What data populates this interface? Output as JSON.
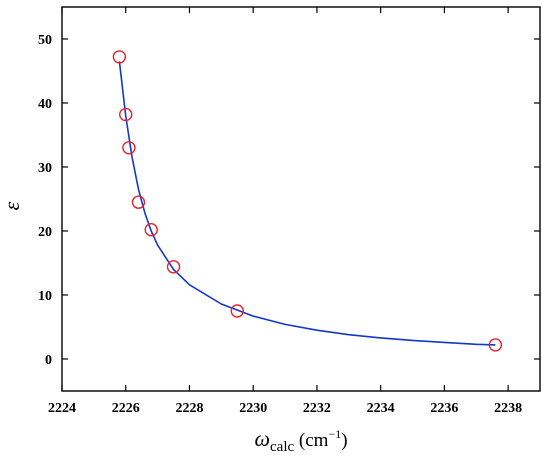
{
  "chart_data": {
    "type": "scatter",
    "xlim": [
      2224,
      2239
    ],
    "ylim": [
      -5,
      55
    ],
    "x_ticks": [
      2224,
      2226,
      2228,
      2230,
      2232,
      2234,
      2236,
      2238
    ],
    "y_ticks": [
      0,
      10,
      20,
      30,
      40,
      50
    ],
    "xlabel": {
      "symbol": "ω",
      "subscript": "calc",
      "unit_open": " (cm",
      "unit_sup": "−1",
      "unit_close": ")"
    },
    "ylabel": "ε",
    "series": [
      {
        "marker": "open-circle",
        "color": "#e8232a",
        "x": [
          2225.8,
          2226.0,
          2226.1,
          2226.4,
          2226.8,
          2227.5,
          2229.5,
          2237.6
        ],
        "y": [
          47.2,
          38.2,
          33.0,
          24.5,
          20.2,
          14.4,
          7.5,
          2.2
        ]
      },
      {
        "marker": "line",
        "color": "#1437c8",
        "x": [
          2225.8,
          2226.0,
          2226.2,
          2226.4,
          2226.6,
          2226.8,
          2227.0,
          2227.5,
          2228.0,
          2229.0,
          2230.0,
          2231.0,
          2232.0,
          2233.0,
          2234.0,
          2235.0,
          2236.0,
          2237.0,
          2237.6
        ],
        "y": [
          46.5,
          38.0,
          31.5,
          26.5,
          22.8,
          20.0,
          17.8,
          14.0,
          11.6,
          8.6,
          6.7,
          5.4,
          4.5,
          3.8,
          3.3,
          2.9,
          2.6,
          2.3,
          2.2
        ]
      }
    ],
    "grid": false,
    "legend": "none"
  }
}
